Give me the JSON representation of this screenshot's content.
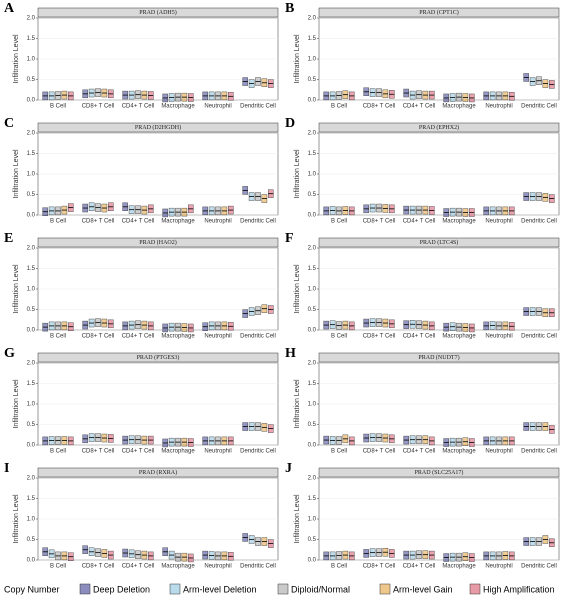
{
  "legend_title": "Copy Number",
  "chart_data": [
    {
      "type": "box",
      "label": "A",
      "title": "PRAD (ADH5)",
      "ylabel": "Infiltration Level",
      "categories": [
        "B Cell",
        "CD8+ T Cell",
        "CD4+ T Cell",
        "Macrophage",
        "Neutrophil",
        "Dendritic Cell"
      ],
      "ylim": [
        0,
        2
      ],
      "yticks": [
        {
          "value": 0,
          "label": "0.0"
        },
        {
          "value": 0.5,
          "label": "0.5"
        },
        {
          "value": 1,
          "label": "1.0"
        },
        {
          "value": 1.5,
          "label": "1.5"
        },
        {
          "value": 2,
          "label": "2.0"
        }
      ],
      "grid": true,
      "series": [
        {
          "name": "Deep Deletion",
          "color": "#3c4191",
          "values": [
            0.1,
            0.15,
            0.12,
            0.05,
            0.1,
            0.45
          ]
        },
        {
          "name": "Arm-level Deletion",
          "color": "#8cc3de",
          "values": [
            0.1,
            0.17,
            0.12,
            0.06,
            0.1,
            0.4
          ]
        },
        {
          "name": "Diploid/Normal",
          "color": "#a6a6a6",
          "values": [
            0.11,
            0.18,
            0.13,
            0.07,
            0.1,
            0.45
          ]
        },
        {
          "name": "Arm-level Gain",
          "color": "#e6a23c",
          "values": [
            0.12,
            0.17,
            0.12,
            0.07,
            0.1,
            0.42
          ]
        },
        {
          "name": "High Amplification",
          "color": "#d9586d",
          "values": [
            0.1,
            0.15,
            0.11,
            0.06,
            0.09,
            0.4
          ]
        }
      ]
    },
    {
      "type": "box",
      "label": "B",
      "title": "PRAD (CPT1C)",
      "ylabel": "Infiltration Level",
      "categories": [
        "B Cell",
        "CD8+ T Cell",
        "CD4+ T Cell",
        "Macrophage",
        "Neutrophil",
        "Dendritic Cell"
      ],
      "ylim": [
        0,
        2
      ],
      "yticks": [
        {
          "value": 0,
          "label": "0.0"
        },
        {
          "value": 0.5,
          "label": "0.5"
        },
        {
          "value": 1,
          "label": "1.0"
        },
        {
          "value": 1.5,
          "label": "1.5"
        },
        {
          "value": 2,
          "label": "2.0"
        }
      ],
      "grid": true,
      "series": [
        {
          "name": "Deep Deletion",
          "color": "#3c4191",
          "values": [
            0.1,
            0.2,
            0.17,
            0.05,
            0.1,
            0.55
          ]
        },
        {
          "name": "Arm-level Deletion",
          "color": "#8cc3de",
          "values": [
            0.1,
            0.18,
            0.12,
            0.06,
            0.1,
            0.45
          ]
        },
        {
          "name": "Diploid/Normal",
          "color": "#a6a6a6",
          "values": [
            0.11,
            0.18,
            0.13,
            0.07,
            0.1,
            0.47
          ]
        },
        {
          "name": "Arm-level Gain",
          "color": "#e6a23c",
          "values": [
            0.13,
            0.15,
            0.12,
            0.06,
            0.1,
            0.4
          ]
        },
        {
          "name": "High Amplification",
          "color": "#d9586d",
          "values": [
            0.1,
            0.14,
            0.12,
            0.05,
            0.09,
            0.38
          ]
        }
      ]
    },
    {
      "type": "box",
      "label": "C",
      "title": "PRAD (D2HGDH)",
      "ylabel": "Infiltration Level",
      "categories": [
        "B Cell",
        "CD8+ T Cell",
        "CD4+ T Cell",
        "Macrophage",
        "Neutrophil",
        "Dendritic Cell"
      ],
      "ylim": [
        0,
        2
      ],
      "yticks": [
        {
          "value": 0,
          "label": "0.0"
        },
        {
          "value": 0.5,
          "label": "0.5"
        },
        {
          "value": 1,
          "label": "1.0"
        },
        {
          "value": 1.5,
          "label": "1.5"
        },
        {
          "value": 2,
          "label": "2.0"
        }
      ],
      "grid": true,
      "series": [
        {
          "name": "Deep Deletion",
          "color": "#3c4191",
          "values": [
            0.08,
            0.17,
            0.2,
            0.05,
            0.1,
            0.6
          ]
        },
        {
          "name": "Arm-level Deletion",
          "color": "#8cc3de",
          "values": [
            0.1,
            0.2,
            0.13,
            0.07,
            0.1,
            0.45
          ]
        },
        {
          "name": "Diploid/Normal",
          "color": "#a6a6a6",
          "values": [
            0.1,
            0.18,
            0.13,
            0.07,
            0.1,
            0.45
          ]
        },
        {
          "name": "Arm-level Gain",
          "color": "#e6a23c",
          "values": [
            0.12,
            0.17,
            0.12,
            0.07,
            0.1,
            0.4
          ]
        },
        {
          "name": "High Amplification",
          "color": "#d9586d",
          "values": [
            0.18,
            0.2,
            0.15,
            0.15,
            0.12,
            0.52
          ]
        }
      ]
    },
    {
      "type": "box",
      "label": "D",
      "title": "PRAD (EPHX2)",
      "ylabel": "Infiltration Level",
      "categories": [
        "B Cell",
        "CD8+ T Cell",
        "CD4+ T Cell",
        "Macrophage",
        "Neutrophil",
        "Dendritic Cell"
      ],
      "ylim": [
        0,
        2
      ],
      "yticks": [
        {
          "value": 0,
          "label": "0.0"
        },
        {
          "value": 0.5,
          "label": "0.5"
        },
        {
          "value": 1,
          "label": "1.0"
        },
        {
          "value": 1.5,
          "label": "1.5"
        },
        {
          "value": 2,
          "label": "2.0"
        }
      ],
      "grid": true,
      "series": [
        {
          "name": "Deep Deletion",
          "color": "#3c4191",
          "values": [
            0.1,
            0.15,
            0.12,
            0.06,
            0.1,
            0.45
          ]
        },
        {
          "name": "Arm-level Deletion",
          "color": "#8cc3de",
          "values": [
            0.11,
            0.17,
            0.12,
            0.07,
            0.1,
            0.45
          ]
        },
        {
          "name": "Diploid/Normal",
          "color": "#a6a6a6",
          "values": [
            0.1,
            0.17,
            0.12,
            0.07,
            0.1,
            0.45
          ]
        },
        {
          "name": "Arm-level Gain",
          "color": "#e6a23c",
          "values": [
            0.11,
            0.16,
            0.12,
            0.06,
            0.1,
            0.43
          ]
        },
        {
          "name": "High Amplification",
          "color": "#d9586d",
          "values": [
            0.1,
            0.15,
            0.11,
            0.06,
            0.1,
            0.4
          ]
        }
      ]
    },
    {
      "type": "box",
      "label": "E",
      "title": "PRAD (HAO2)",
      "ylabel": "Infiltration Level",
      "categories": [
        "B Cell",
        "CD8+ T Cell",
        "CD4+ T Cell",
        "Macrophage",
        "Neutrophil",
        "Dendritic Cell"
      ],
      "ylim": [
        0,
        2
      ],
      "yticks": [
        {
          "value": 0,
          "label": "0.0"
        },
        {
          "value": 0.5,
          "label": "0.5"
        },
        {
          "value": 1,
          "label": "1.0"
        },
        {
          "value": 1.5,
          "label": "1.5"
        },
        {
          "value": 2,
          "label": "2.0"
        }
      ],
      "grid": true,
      "series": [
        {
          "name": "Deep Deletion",
          "color": "#3c4191",
          "values": [
            0.07,
            0.12,
            0.1,
            0.05,
            0.08,
            0.4
          ]
        },
        {
          "name": "Arm-level Deletion",
          "color": "#8cc3de",
          "values": [
            0.1,
            0.17,
            0.12,
            0.07,
            0.1,
            0.45
          ]
        },
        {
          "name": "Diploid/Normal",
          "color": "#a6a6a6",
          "values": [
            0.1,
            0.18,
            0.13,
            0.07,
            0.1,
            0.47
          ]
        },
        {
          "name": "Arm-level Gain",
          "color": "#e6a23c",
          "values": [
            0.1,
            0.17,
            0.12,
            0.06,
            0.1,
            0.52
          ]
        },
        {
          "name": "High Amplification",
          "color": "#d9586d",
          "values": [
            0.08,
            0.15,
            0.1,
            0.05,
            0.09,
            0.5
          ]
        }
      ]
    },
    {
      "type": "box",
      "label": "F",
      "title": "PRAD (LTC4S)",
      "ylabel": "Infiltration Level",
      "categories": [
        "B Cell",
        "CD8+ T Cell",
        "CD4+ T Cell",
        "Macrophage",
        "Neutrophil",
        "Dendritic Cell"
      ],
      "ylim": [
        0,
        2
      ],
      "yticks": [
        {
          "value": 0,
          "label": "0.0"
        },
        {
          "value": 0.5,
          "label": "0.5"
        },
        {
          "value": 1,
          "label": "1.0"
        },
        {
          "value": 1.5,
          "label": "1.5"
        },
        {
          "value": 2,
          "label": "2.0"
        }
      ],
      "grid": true,
      "series": [
        {
          "name": "Deep Deletion",
          "color": "#3c4191",
          "values": [
            0.12,
            0.17,
            0.13,
            0.07,
            0.1,
            0.45
          ]
        },
        {
          "name": "Arm-level Deletion",
          "color": "#8cc3de",
          "values": [
            0.13,
            0.18,
            0.14,
            0.08,
            0.11,
            0.45
          ]
        },
        {
          "name": "Diploid/Normal",
          "color": "#a6a6a6",
          "values": [
            0.11,
            0.18,
            0.13,
            0.07,
            0.1,
            0.45
          ]
        },
        {
          "name": "Arm-level Gain",
          "color": "#e6a23c",
          "values": [
            0.12,
            0.17,
            0.12,
            0.06,
            0.1,
            0.42
          ]
        },
        {
          "name": "High Amplification",
          "color": "#d9586d",
          "values": [
            0.1,
            0.15,
            0.1,
            0.05,
            0.09,
            0.42
          ]
        }
      ]
    },
    {
      "type": "box",
      "label": "G",
      "title": "PRAD (PTGES3)",
      "ylabel": "Infiltration Level",
      "categories": [
        "B Cell",
        "CD8+ T Cell",
        "CD4+ T Cell",
        "Macrophage",
        "Neutrophil",
        "Dendritic Cell"
      ],
      "ylim": [
        0,
        2
      ],
      "yticks": [
        {
          "value": 0,
          "label": "0.0"
        },
        {
          "value": 0.5,
          "label": "0.5"
        },
        {
          "value": 1,
          "label": "1.0"
        },
        {
          "value": 1.5,
          "label": "1.5"
        },
        {
          "value": 2,
          "label": "2.0"
        }
      ],
      "grid": true,
      "series": [
        {
          "name": "Deep Deletion",
          "color": "#3c4191",
          "values": [
            0.1,
            0.15,
            0.12,
            0.05,
            0.1,
            0.45
          ]
        },
        {
          "name": "Arm-level Deletion",
          "color": "#8cc3de",
          "values": [
            0.11,
            0.18,
            0.13,
            0.07,
            0.1,
            0.45
          ]
        },
        {
          "name": "Diploid/Normal",
          "color": "#a6a6a6",
          "values": [
            0.11,
            0.18,
            0.13,
            0.07,
            0.1,
            0.45
          ]
        },
        {
          "name": "Arm-level Gain",
          "color": "#e6a23c",
          "values": [
            0.11,
            0.17,
            0.12,
            0.07,
            0.1,
            0.43
          ]
        },
        {
          "name": "High Amplification",
          "color": "#d9586d",
          "values": [
            0.1,
            0.16,
            0.12,
            0.06,
            0.1,
            0.4
          ]
        }
      ]
    },
    {
      "type": "box",
      "label": "H",
      "title": "PRAD (NUDT7)",
      "ylabel": "Infiltration Level",
      "categories": [
        "B Cell",
        "CD8+ T Cell",
        "CD4+ T Cell",
        "Macrophage",
        "Neutrophil",
        "Dendritic Cell"
      ],
      "ylim": [
        0,
        2
      ],
      "yticks": [
        {
          "value": 0,
          "label": "0.0"
        },
        {
          "value": 0.5,
          "label": "0.5"
        },
        {
          "value": 1,
          "label": "1.0"
        },
        {
          "value": 1.5,
          "label": "1.5"
        },
        {
          "value": 2,
          "label": "2.0"
        }
      ],
      "grid": true,
      "series": [
        {
          "name": "Deep Deletion",
          "color": "#3c4191",
          "values": [
            0.12,
            0.17,
            0.12,
            0.06,
            0.1,
            0.45
          ]
        },
        {
          "name": "Arm-level Deletion",
          "color": "#8cc3de",
          "values": [
            0.11,
            0.18,
            0.13,
            0.07,
            0.1,
            0.45
          ]
        },
        {
          "name": "Diploid/Normal",
          "color": "#a6a6a6",
          "values": [
            0.11,
            0.18,
            0.13,
            0.07,
            0.1,
            0.45
          ]
        },
        {
          "name": "Arm-level Gain",
          "color": "#e6a23c",
          "values": [
            0.15,
            0.17,
            0.13,
            0.08,
            0.1,
            0.45
          ]
        },
        {
          "name": "High Amplification",
          "color": "#d9586d",
          "values": [
            0.1,
            0.15,
            0.1,
            0.06,
            0.1,
            0.38
          ]
        }
      ]
    },
    {
      "type": "box",
      "label": "I",
      "title": "PRAD (RXRA)",
      "ylabel": "Infiltration Level",
      "categories": [
        "B Cell",
        "CD8+ T Cell",
        "CD4+ T Cell",
        "Macrophage",
        "Neutrophil",
        "Dendritic Cell"
      ],
      "ylim": [
        0,
        2
      ],
      "yticks": [
        {
          "value": 0,
          "label": "0.0"
        },
        {
          "value": 0.5,
          "label": "0.5"
        },
        {
          "value": 1,
          "label": "1.0"
        },
        {
          "value": 1.5,
          "label": "1.5"
        },
        {
          "value": 2,
          "label": "2.0"
        }
      ],
      "grid": true,
      "series": [
        {
          "name": "Deep Deletion",
          "color": "#3c4191",
          "values": [
            0.2,
            0.25,
            0.17,
            0.2,
            0.12,
            0.55
          ]
        },
        {
          "name": "Arm-level Deletion",
          "color": "#8cc3de",
          "values": [
            0.15,
            0.2,
            0.15,
            0.12,
            0.11,
            0.5
          ]
        },
        {
          "name": "Diploid/Normal",
          "color": "#a6a6a6",
          "values": [
            0.1,
            0.18,
            0.13,
            0.07,
            0.1,
            0.45
          ]
        },
        {
          "name": "Arm-level Gain",
          "color": "#e6a23c",
          "values": [
            0.1,
            0.16,
            0.12,
            0.07,
            0.1,
            0.45
          ]
        },
        {
          "name": "High Amplification",
          "color": "#d9586d",
          "values": [
            0.08,
            0.12,
            0.1,
            0.05,
            0.09,
            0.4
          ]
        }
      ]
    },
    {
      "type": "box",
      "label": "J",
      "title": "PRAD (SLC25A17)",
      "ylabel": "Infiltration Level",
      "categories": [
        "B Cell",
        "CD8+ T Cell",
        "CD4+ T Cell",
        "Macrophage",
        "Neutrophil",
        "Dendritic Cell"
      ],
      "ylim": [
        0,
        2
      ],
      "yticks": [
        {
          "value": 0,
          "label": "0.0"
        },
        {
          "value": 0.5,
          "label": "0.5"
        },
        {
          "value": 1,
          "label": "1.0"
        },
        {
          "value": 1.5,
          "label": "1.5"
        },
        {
          "value": 2,
          "label": "2.0"
        }
      ],
      "grid": true,
      "series": [
        {
          "name": "Deep Deletion",
          "color": "#3c4191",
          "values": [
            0.1,
            0.16,
            0.12,
            0.06,
            0.1,
            0.45
          ]
        },
        {
          "name": "Arm-level Deletion",
          "color": "#8cc3de",
          "values": [
            0.1,
            0.18,
            0.12,
            0.07,
            0.1,
            0.45
          ]
        },
        {
          "name": "Diploid/Normal",
          "color": "#a6a6a6",
          "values": [
            0.11,
            0.18,
            0.13,
            0.07,
            0.1,
            0.45
          ]
        },
        {
          "name": "Arm-level Gain",
          "color": "#e6a23c",
          "values": [
            0.12,
            0.19,
            0.13,
            0.08,
            0.11,
            0.5
          ]
        },
        {
          "name": "High Amplification",
          "color": "#d9586d",
          "values": [
            0.1,
            0.16,
            0.12,
            0.06,
            0.1,
            0.42
          ]
        }
      ]
    }
  ]
}
